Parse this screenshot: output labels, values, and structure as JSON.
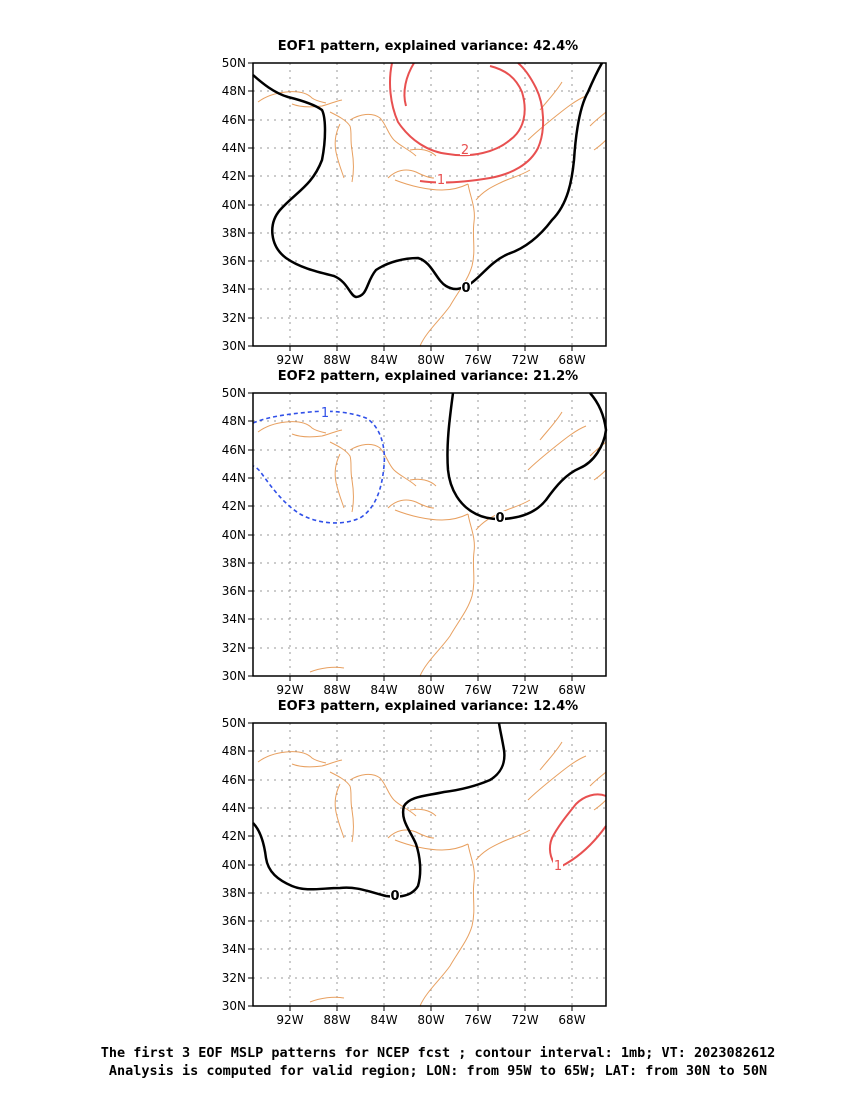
{
  "colors": {
    "coast": "#e8a060",
    "zero": "#000000",
    "positive": "#e85050",
    "negative": "#3050e8",
    "grid": "#999999"
  },
  "lon_ticks": [
    "92W",
    "88W",
    "84W",
    "80W",
    "76W",
    "72W",
    "68W"
  ],
  "lat_ticks": [
    "50N",
    "48N",
    "46N",
    "44N",
    "42N",
    "40N",
    "38N",
    "36N",
    "34N",
    "32N",
    "30N"
  ],
  "panels": [
    {
      "title": "EOF1 pattern, explained variance: 42.4%",
      "contour_labels": [
        {
          "text": "0",
          "kind": "zero"
        },
        {
          "text": "1",
          "kind": "positive"
        },
        {
          "text": "2",
          "kind": "positive"
        }
      ]
    },
    {
      "title": "EOF2 pattern, explained variance: 21.2%",
      "contour_labels": [
        {
          "text": "0",
          "kind": "zero"
        },
        {
          "text": "1",
          "kind": "negative"
        }
      ]
    },
    {
      "title": "EOF3 pattern, explained variance: 12.4%",
      "contour_labels": [
        {
          "text": "0",
          "kind": "zero"
        },
        {
          "text": "1",
          "kind": "positive"
        }
      ]
    }
  ],
  "caption": {
    "line1": "The first 3 EOF MSLP patterns for NCEP fcst ; contour interval: 1mb; VT: 2023082612",
    "line2": "Analysis is computed for valid region; LON: from 95W to 65W; LAT: from 30N to 50N"
  }
}
